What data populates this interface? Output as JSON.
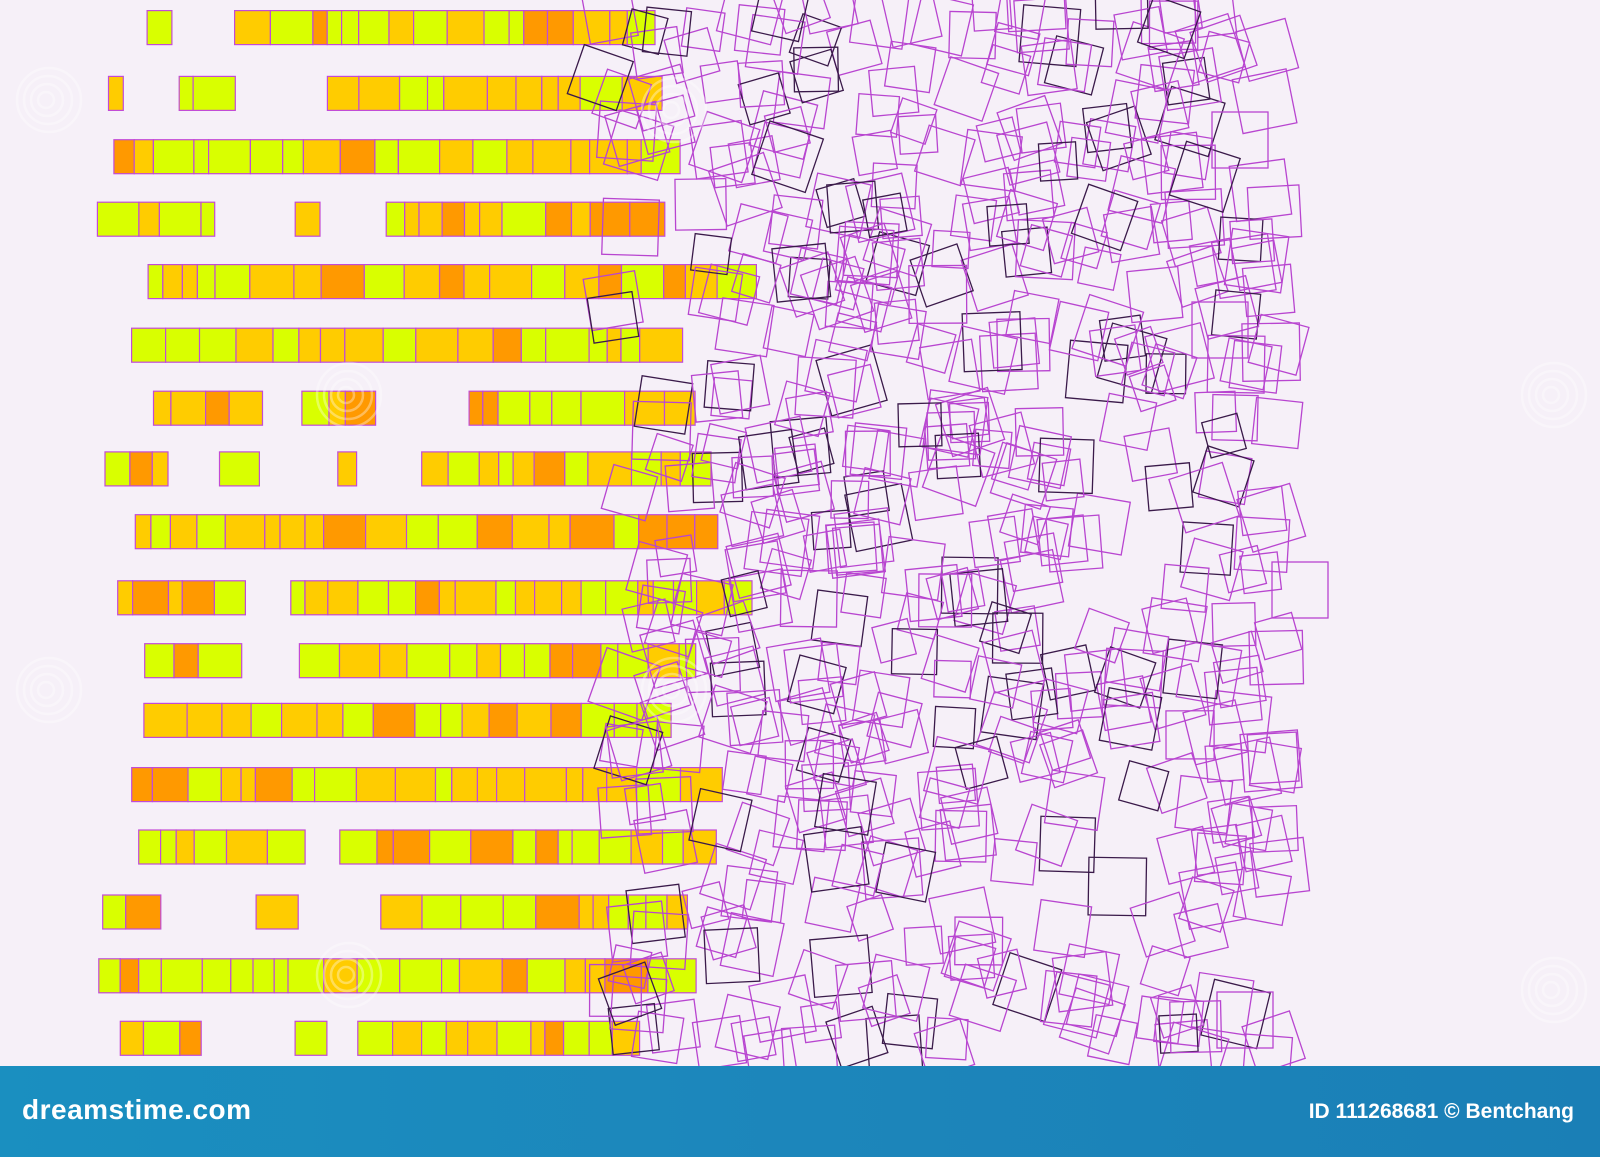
{
  "image": {
    "subject": "abstract pattern",
    "colors": {
      "background": "#f6f0f8",
      "lime": "#d9ff00",
      "yellow": "#ffcc00",
      "orange": "#ff9900",
      "fill_border": "#c24bd6",
      "outline_purple": "#b845d0",
      "outline_dark": "#3a1a4a",
      "footer_bar": "#1a8cc0"
    }
  },
  "watermark": {
    "brand_text": "dreamstime.com",
    "id_text": "ID 111268681 © Bentchang"
  }
}
